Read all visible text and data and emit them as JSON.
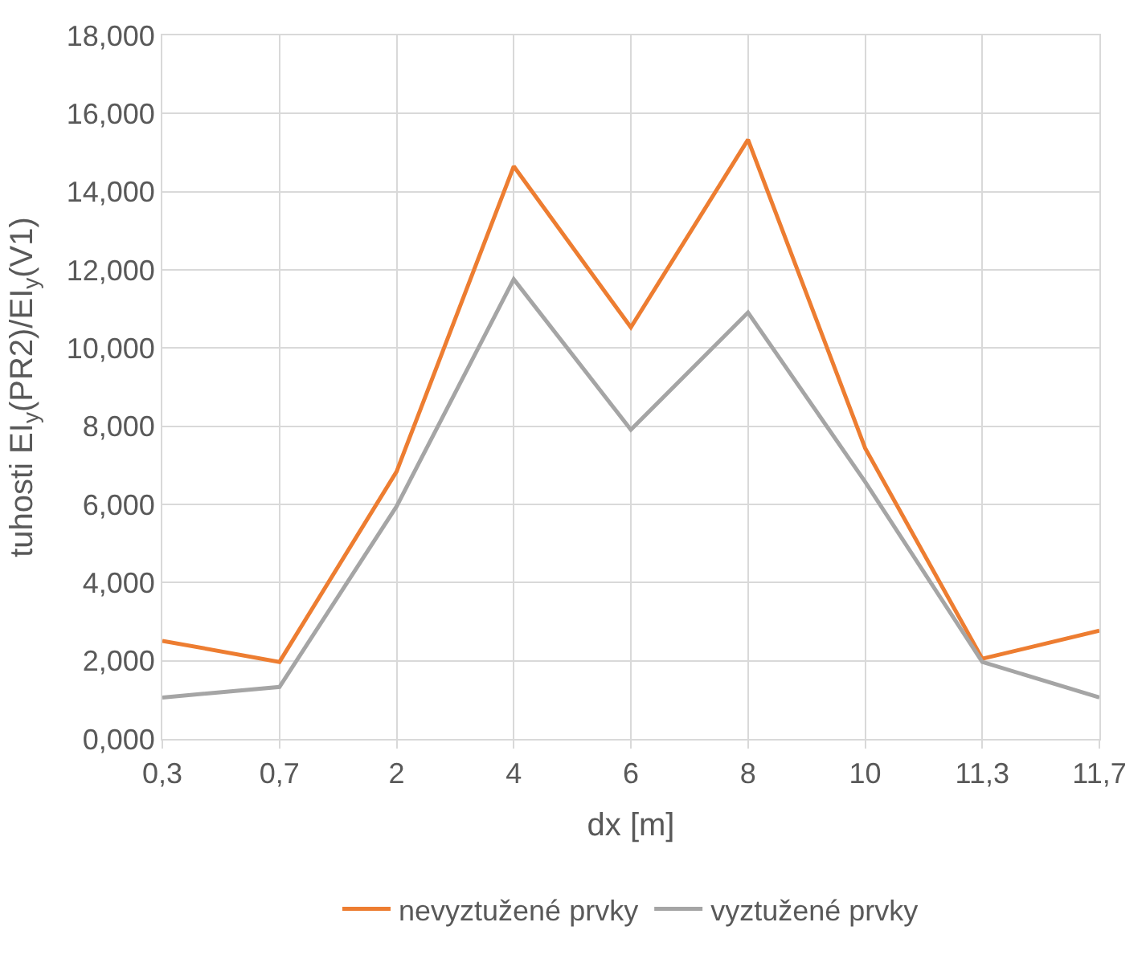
{
  "chart_data": {
    "type": "line",
    "xlabel": "dx [m]",
    "ylabel": "tuhosti EI$_{y}$(PR2)/EI$_{y}$(V1)",
    "categories": [
      "0,3",
      "0,7",
      "2",
      "4",
      "6",
      "8",
      "10",
      "11,3",
      "11,7"
    ],
    "series": [
      {
        "name": "nevyztužené prvky",
        "color": "#ed7d31",
        "values": [
          2.51,
          1.97,
          6.84,
          14.65,
          10.53,
          15.33,
          7.44,
          2.05,
          2.77
        ]
      },
      {
        "name": "vyztužené prvky",
        "color": "#a5a5a5",
        "values": [
          1.06,
          1.33,
          5.95,
          11.76,
          7.91,
          10.91,
          6.58,
          1.97,
          1.06
        ]
      }
    ],
    "ylim": [
      0,
      18
    ],
    "yticks": [
      {
        "value": 0,
        "label": "0,000"
      },
      {
        "value": 2,
        "label": "2,000"
      },
      {
        "value": 4,
        "label": "4,000"
      },
      {
        "value": 6,
        "label": "6,000"
      },
      {
        "value": 8,
        "label": "8,000"
      },
      {
        "value": 10,
        "label": "10,000"
      },
      {
        "value": 12,
        "label": "12,000"
      },
      {
        "value": 14,
        "label": "14,000"
      },
      {
        "value": 16,
        "label": "16,000"
      },
      {
        "value": 18,
        "label": "18,000"
      }
    ],
    "grid": true,
    "legend": "bottom",
    "marker": "none",
    "line_style": "solid"
  }
}
